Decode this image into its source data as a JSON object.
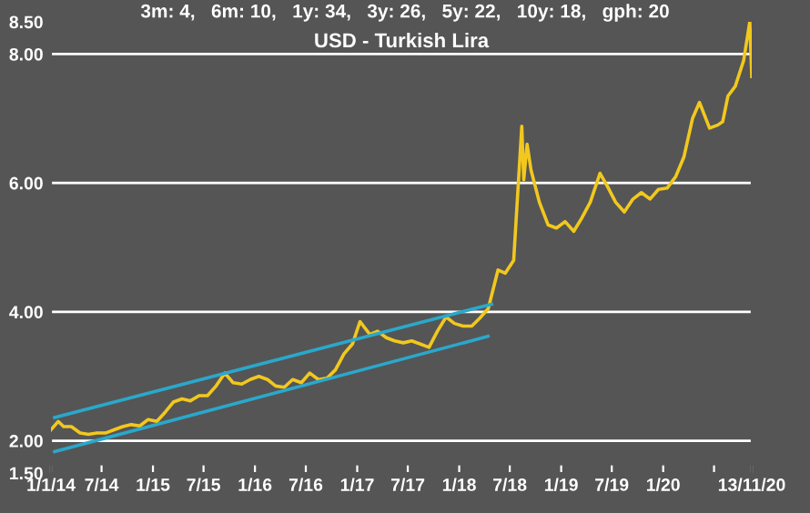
{
  "chart_data": {
    "type": "line",
    "title": "USD - Turkish Lira",
    "subtitle": "3m: 4,   6m: 10,   1y: 34,   3y: 26,   5y: 22,   10y: 18,   gph: 20",
    "x": [
      "2014-01-01",
      "2014-01-27",
      "2014-02-15",
      "2014-03-15",
      "2014-04-15",
      "2014-05-15",
      "2014-06-15",
      "2014-07-15",
      "2014-08-15",
      "2014-09-15",
      "2014-10-15",
      "2014-11-15",
      "2014-12-15",
      "2015-01-15",
      "2015-02-15",
      "2015-03-15",
      "2015-04-15",
      "2015-05-15",
      "2015-06-15",
      "2015-07-15",
      "2015-08-15",
      "2015-09-15",
      "2015-10-15",
      "2015-11-15",
      "2015-12-15",
      "2016-01-15",
      "2016-02-15",
      "2016-03-15",
      "2016-04-15",
      "2016-05-15",
      "2016-06-15",
      "2016-07-15",
      "2016-08-15",
      "2016-09-15",
      "2016-10-15",
      "2016-11-15",
      "2016-12-15",
      "2017-01-11",
      "2017-02-15",
      "2017-03-15",
      "2017-04-15",
      "2017-05-15",
      "2017-06-15",
      "2017-07-15",
      "2017-08-15",
      "2017-09-15",
      "2017-10-15",
      "2017-11-15",
      "2017-12-15",
      "2018-01-15",
      "2018-02-15",
      "2018-03-15",
      "2018-04-15",
      "2018-05-20",
      "2018-06-15",
      "2018-07-15",
      "2018-08-13",
      "2018-08-20",
      "2018-09-01",
      "2018-09-15",
      "2018-10-15",
      "2018-11-15",
      "2018-12-15",
      "2019-01-15",
      "2019-02-15",
      "2019-03-15",
      "2019-04-15",
      "2019-05-20",
      "2019-06-15",
      "2019-07-15",
      "2019-08-15",
      "2019-09-15",
      "2019-10-15",
      "2019-11-15",
      "2019-12-15",
      "2020-01-15",
      "2020-02-15",
      "2020-03-15",
      "2020-04-15",
      "2020-05-10",
      "2020-06-15",
      "2020-07-15",
      "2020-08-01",
      "2020-08-20",
      "2020-09-15",
      "2020-10-15",
      "2020-11-06",
      "2020-11-13"
    ],
    "series": [
      {
        "color": "#f2c81e",
        "values": [
          2.17,
          2.3,
          2.22,
          2.22,
          2.12,
          2.1,
          2.12,
          2.12,
          2.17,
          2.22,
          2.25,
          2.23,
          2.33,
          2.3,
          2.45,
          2.6,
          2.65,
          2.62,
          2.7,
          2.7,
          2.85,
          3.05,
          2.9,
          2.88,
          2.95,
          3.0,
          2.95,
          2.85,
          2.83,
          2.95,
          2.9,
          3.05,
          2.95,
          2.97,
          3.1,
          3.35,
          3.5,
          3.85,
          3.65,
          3.7,
          3.6,
          3.55,
          3.52,
          3.55,
          3.5,
          3.45,
          3.7,
          3.92,
          3.82,
          3.78,
          3.78,
          3.9,
          4.05,
          4.65,
          4.6,
          4.8,
          6.88,
          6.05,
          6.6,
          6.2,
          5.7,
          5.35,
          5.3,
          5.4,
          5.25,
          5.45,
          5.7,
          6.15,
          5.95,
          5.7,
          5.55,
          5.75,
          5.85,
          5.75,
          5.9,
          5.92,
          6.1,
          6.4,
          7.0,
          7.25,
          6.85,
          6.9,
          6.95,
          7.35,
          7.5,
          7.9,
          8.5,
          7.65
        ]
      },
      {
        "type": "line",
        "color": "#2aa8cc",
        "x": [
          "2014-01-14",
          "2018-04-27"
        ],
        "values": [
          2.36,
          4.12
        ]
      },
      {
        "type": "line",
        "color": "#2aa8cc",
        "x": [
          "2014-01-14",
          "2018-04-14"
        ],
        "values": [
          1.83,
          3.62
        ]
      }
    ],
    "xlim": [
      "2014-01-01",
      "2020-11-13"
    ],
    "xticks": [
      {
        "value": "2014-01-01",
        "label": "1/1/14"
      },
      {
        "value": "2014-07-01",
        "label": "7/14"
      },
      {
        "value": "2015-01-01",
        "label": "1/15"
      },
      {
        "value": "2015-07-01",
        "label": "7/15"
      },
      {
        "value": "2016-01-01",
        "label": "1/16"
      },
      {
        "value": "2016-07-01",
        "label": "7/16"
      },
      {
        "value": "2017-01-01",
        "label": "1/17"
      },
      {
        "value": "2017-07-01",
        "label": "7/17"
      },
      {
        "value": "2018-01-01",
        "label": "1/18"
      },
      {
        "value": "2018-07-01",
        "label": "7/18"
      },
      {
        "value": "2019-01-01",
        "label": "1/19"
      },
      {
        "value": "2019-07-01",
        "label": "7/19"
      },
      {
        "value": "2020-01-01",
        "label": "1/20"
      },
      {
        "value": "2020-07-01",
        "label": null
      },
      {
        "value": "2020-11-13",
        "label": "13/11/20"
      }
    ],
    "ylim": [
      1.5,
      8.5
    ],
    "yticks": [
      {
        "value": 1.5,
        "label": "1.50"
      },
      {
        "value": 2,
        "label": "2.00"
      },
      {
        "value": 4,
        "label": "4.00"
      },
      {
        "value": 6,
        "label": "6.00"
      },
      {
        "value": 8,
        "label": "8.00"
      },
      {
        "value": 8.5,
        "label": "8.50"
      }
    ],
    "ref_lines": [
      {
        "axis": "y",
        "value": 2,
        "color": "#ffffff"
      },
      {
        "axis": "y",
        "value": 4,
        "color": "#ffffff"
      },
      {
        "axis": "y",
        "value": 6,
        "color": "#ffffff"
      },
      {
        "axis": "y",
        "value": 8,
        "color": "#ffffff"
      }
    ],
    "line_style": "solid",
    "marker": "none",
    "grid": false,
    "legend": false
  }
}
